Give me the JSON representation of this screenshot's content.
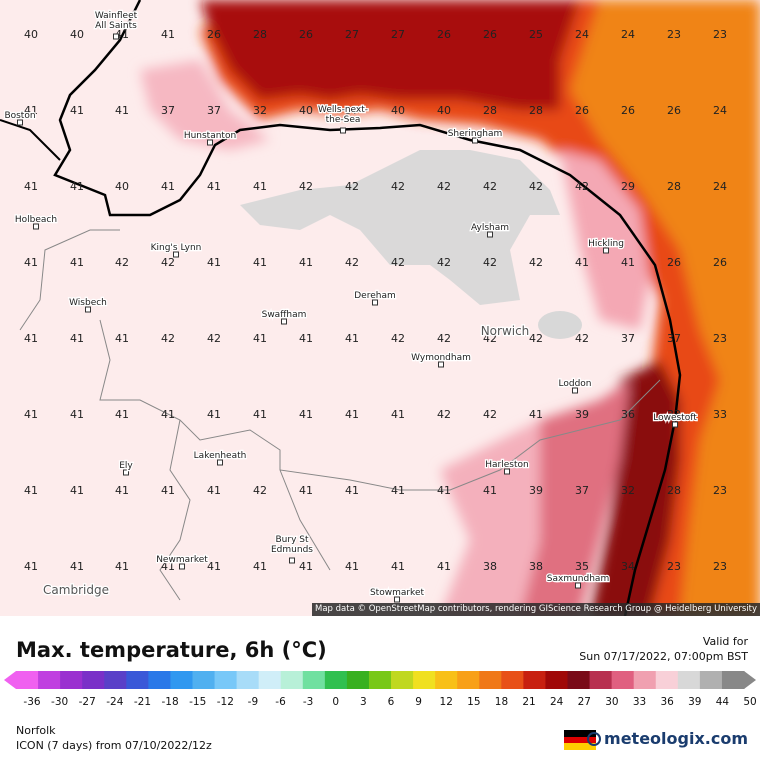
{
  "title": "Max. temperature, 6h (°C)",
  "valid_label": "Valid for",
  "valid_time": "Sun 07/17/2022, 07:00pm BST",
  "region": "Norfolk",
  "model_run": "ICON (7 days) from 07/10/2022/12z",
  "brand": "meteologix.com",
  "attribution": "Map data © OpenStreetMap contributors, rendering GIScience Research Group @ Heidelberg University",
  "legend": {
    "ticks": [
      "-36",
      "-30",
      "-27",
      "-24",
      "-21",
      "-18",
      "-15",
      "-12",
      "-9",
      "-6",
      "-3",
      "0",
      "3",
      "6",
      "9",
      "12",
      "15",
      "18",
      "21",
      "24",
      "27",
      "30",
      "33",
      "36",
      "39",
      "44",
      "50"
    ],
    "colors": [
      "#f060f0",
      "#c040e0",
      "#9a30d0",
      "#7a30c8",
      "#5a40c8",
      "#3a58d8",
      "#2a78e8",
      "#3098f0",
      "#50b0f0",
      "#78c8f8",
      "#a8dcf8",
      "#d0eef8",
      "#b8f0d8",
      "#70e0a0",
      "#30c050",
      "#38b020",
      "#78c818",
      "#c0d820",
      "#f0e020",
      "#f8c018",
      "#f8a018",
      "#f07818",
      "#e85018",
      "#c82010",
      "#a00808",
      "#7a0a18",
      "#b83050",
      "#e06080",
      "#f0a0b0",
      "#f8d0d8",
      "#d8d8d8",
      "#b0b0b0",
      "#888888"
    ]
  },
  "cities": [
    {
      "name": "Wainfleet\nAll Saints"
    },
    {
      "name": "Boston"
    },
    {
      "name": "Hunstanton"
    },
    {
      "name": "Wells-next-\nthe-Sea"
    },
    {
      "name": "Sheringham"
    },
    {
      "name": "Holbeach"
    },
    {
      "name": "King's Lynn"
    },
    {
      "name": "Aylsham"
    },
    {
      "name": "Hickling"
    },
    {
      "name": "Wisbech"
    },
    {
      "name": "Dereham"
    },
    {
      "name": "Swaffham"
    },
    {
      "name": "Norwich"
    },
    {
      "name": "Wymondham"
    },
    {
      "name": "Loddon"
    },
    {
      "name": "Lowestoft"
    },
    {
      "name": "Lakenheath"
    },
    {
      "name": "Harleston"
    },
    {
      "name": "Ely"
    },
    {
      "name": "Newmarket"
    },
    {
      "name": "Bury St\nEdmunds"
    },
    {
      "name": "Saxmundham"
    },
    {
      "name": "Stowmarket"
    },
    {
      "name": "Cambridge"
    }
  ],
  "grid_values": [
    [
      "40",
      "40",
      "41",
      "41",
      "26",
      "28",
      "26",
      "27",
      "27",
      "26",
      "26",
      "25",
      "24",
      "24",
      "23",
      "23"
    ],
    [
      "41",
      "41",
      "41",
      "37",
      "37",
      "32",
      "40",
      "37",
      "40",
      "40",
      "28",
      "28",
      "26",
      "26",
      "26",
      "24"
    ],
    [
      "41",
      "41",
      "40",
      "41",
      "41",
      "41",
      "42",
      "42",
      "42",
      "42",
      "42",
      "42",
      "42",
      "29",
      "28",
      "24"
    ],
    [
      "41",
      "41",
      "42",
      "42",
      "41",
      "41",
      "41",
      "42",
      "42",
      "42",
      "42",
      "42",
      "41",
      "41",
      "26",
      "26"
    ],
    [
      "41",
      "41",
      "41",
      "42",
      "42",
      "41",
      "41",
      "41",
      "42",
      "42",
      "42",
      "42",
      "42",
      "37",
      "37",
      "23"
    ],
    [
      "41",
      "41",
      "41",
      "41",
      "41",
      "41",
      "41",
      "41",
      "41",
      "42",
      "42",
      "41",
      "39",
      "36",
      "33",
      "33"
    ],
    [
      "41",
      "41",
      "41",
      "41",
      "41",
      "42",
      "41",
      "41",
      "41",
      "41",
      "41",
      "39",
      "37",
      "32",
      "28",
      "23"
    ],
    [
      "41",
      "41",
      "41",
      "41",
      "41",
      "41",
      "41",
      "41",
      "41",
      "41",
      "38",
      "38",
      "35",
      "34",
      "23",
      "23"
    ]
  ]
}
